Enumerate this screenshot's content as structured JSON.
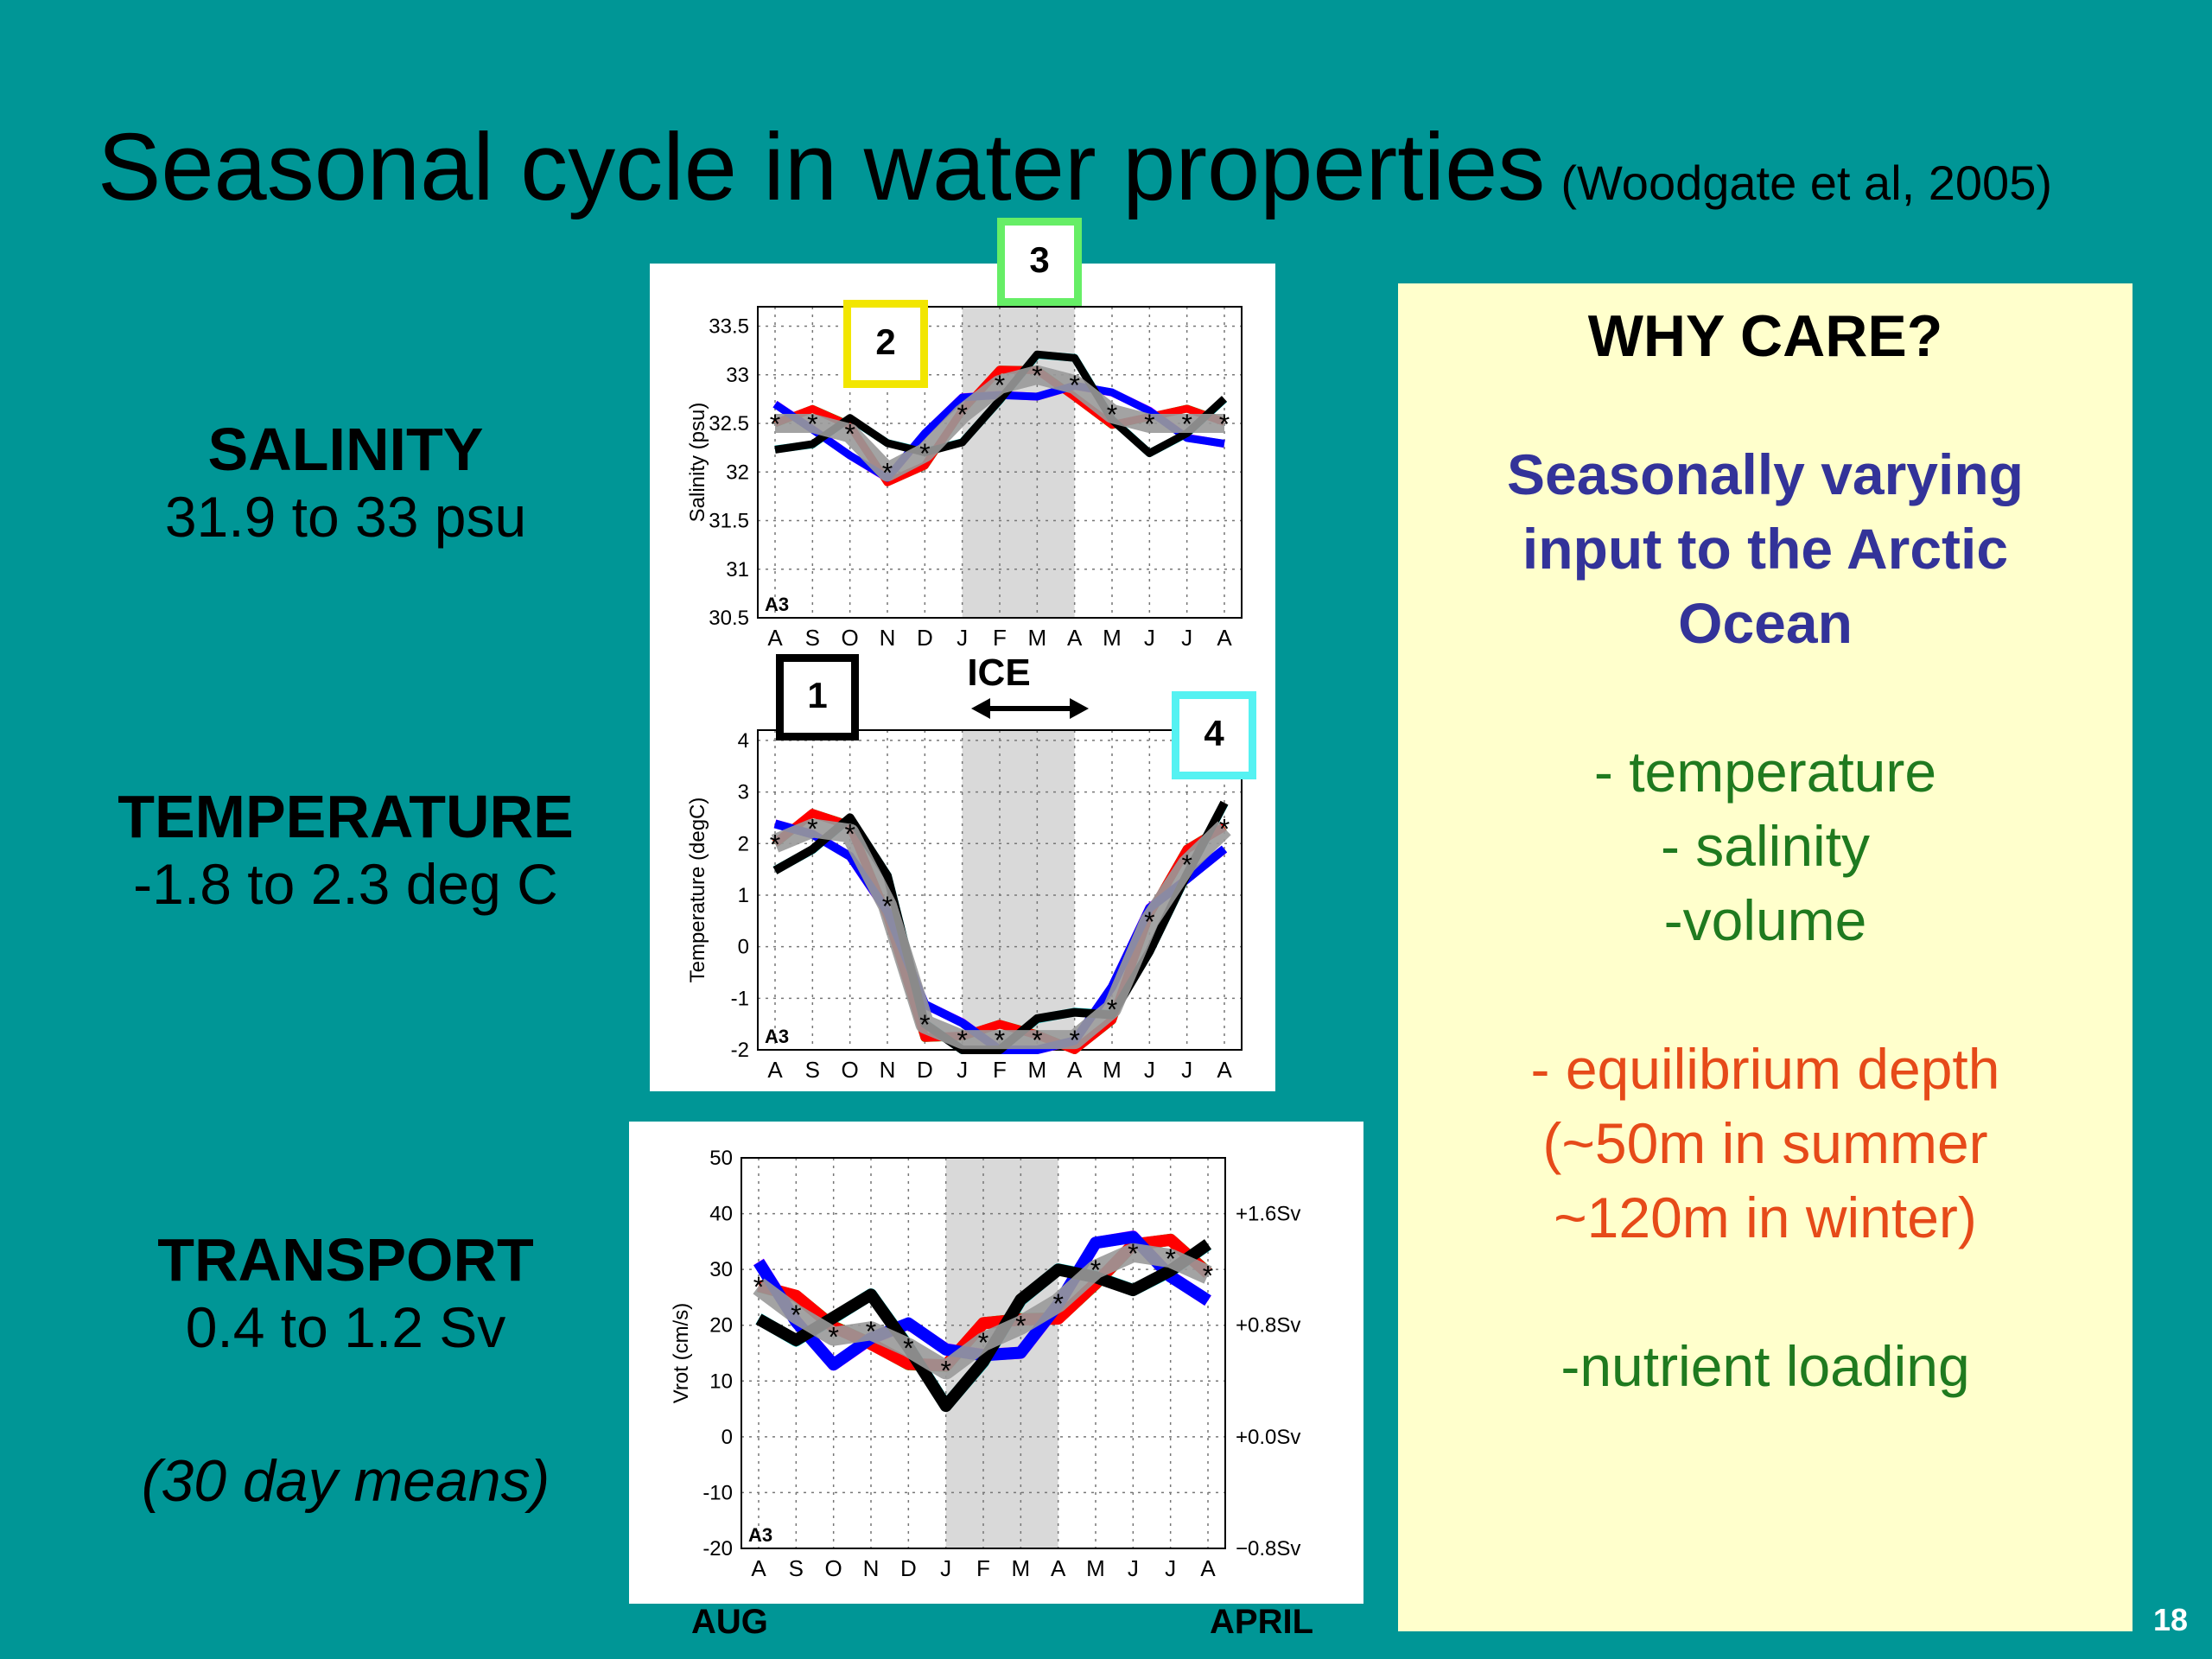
{
  "slide": {
    "title": "Seasonal cycle in water properties",
    "citation": "(Woodgate et al, 2005)",
    "page_number": "18"
  },
  "left": {
    "salinity": {
      "heading": "SALINITY",
      "range": "31.9 to 33 psu"
    },
    "temperature": {
      "heading": "TEMPERATURE",
      "range": "-1.8 to 2.3 deg C"
    },
    "transport": {
      "heading": "TRANSPORT",
      "range": "0.4 to 1.2 Sv"
    },
    "note": "(30 day means)"
  },
  "figure": {
    "ice_label": "ICE",
    "station_label": "A3",
    "months": [
      "A",
      "S",
      "O",
      "N",
      "D",
      "J",
      "F",
      "M",
      "A",
      "M",
      "J",
      "J",
      "A"
    ],
    "markers": [
      "1",
      "2",
      "3",
      "4"
    ],
    "bottom_left": "AUG",
    "bottom_right": "APRIL",
    "colors": {
      "ice_shade": "#d9d9d9",
      "marker1": "#000000",
      "marker2": "#f2e600",
      "marker3": "#66ee66",
      "marker4": "#55f2f2"
    }
  },
  "chart_data": [
    {
      "type": "line",
      "ylabel": "Salinity (psu)",
      "ylim": [
        30.5,
        33.7
      ],
      "yticks": [
        30.5,
        31,
        31.5,
        32,
        32.5,
        33,
        33.5
      ],
      "categories": [
        "A",
        "S",
        "O",
        "N",
        "D",
        "J",
        "F",
        "M",
        "A",
        "M",
        "J",
        "J",
        "A"
      ],
      "series": [
        {
          "name": "",
          "values": [
            32.5,
            32.5,
            32.4,
            32.0,
            32.2,
            32.6,
            32.9,
            33.0,
            32.9,
            32.6,
            32.5,
            32.5,
            32.5
          ]
        }
      ]
    },
    {
      "type": "line",
      "ylabel": "Temperature (degC)",
      "ylim": [
        -2,
        4.2
      ],
      "yticks": [
        -2,
        -1,
        0,
        1,
        2,
        3,
        4
      ],
      "categories": [
        "A",
        "S",
        "O",
        "N",
        "D",
        "J",
        "F",
        "M",
        "A",
        "M",
        "J",
        "J",
        "A"
      ],
      "series": [
        {
          "name": "",
          "values": [
            2.0,
            2.3,
            2.2,
            0.8,
            -1.5,
            -1.8,
            -1.8,
            -1.8,
            -1.8,
            -1.2,
            0.5,
            1.6,
            2.3
          ]
        }
      ]
    },
    {
      "type": "line",
      "ylabel": "Vrot (cm/s)",
      "ylim": [
        -20,
        50
      ],
      "yticks": [
        -20,
        -10,
        0,
        10,
        20,
        30,
        40,
        50
      ],
      "right_axis_labels": [
        "+1.6Sv",
        "+0.8Sv",
        "+0.0Sv",
        "−0.8Sv"
      ],
      "categories": [
        "A",
        "S",
        "O",
        "N",
        "D",
        "J",
        "F",
        "M",
        "A",
        "M",
        "J",
        "J",
        "A"
      ],
      "series": [
        {
          "name": "",
          "values": [
            27,
            22,
            18,
            19,
            16,
            12,
            17,
            20,
            24,
            30,
            33,
            32,
            29
          ]
        }
      ]
    }
  ],
  "why_care": {
    "title": "WHY CARE?",
    "blue_lines": [
      "Seasonally varying",
      "input to the Arctic",
      "Ocean"
    ],
    "green_lines": [
      "- temperature",
      "- salinity",
      "-volume"
    ],
    "red_lines": [
      "- equilibrium depth",
      "(~50m in summer",
      "~120m in winter)"
    ],
    "last_line": "-nutrient loading"
  }
}
